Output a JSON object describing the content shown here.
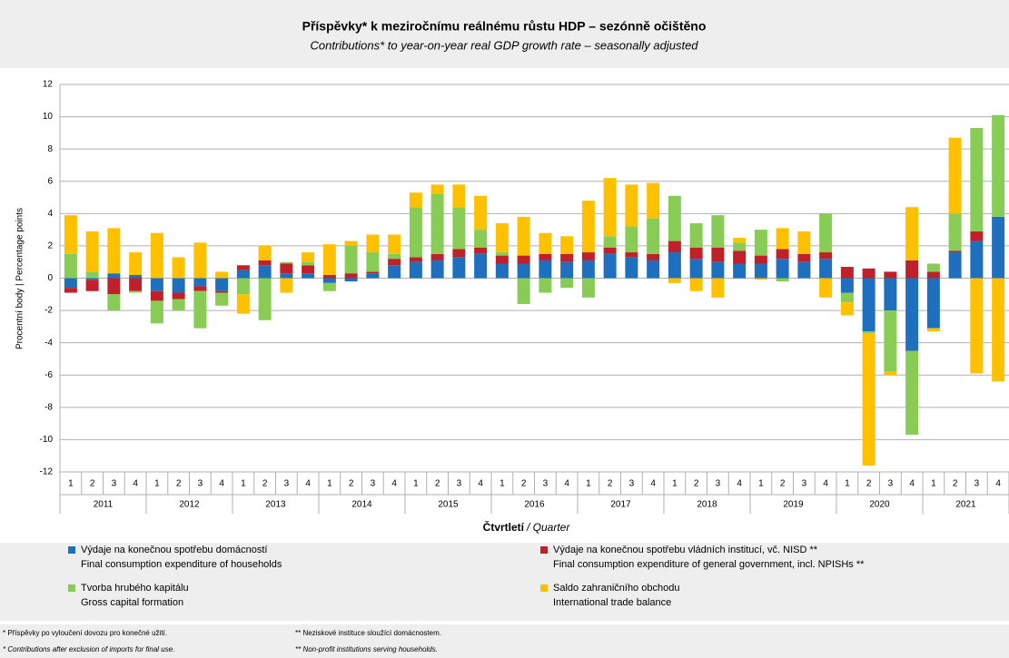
{
  "chart_data": {
    "type": "stacked_bar",
    "title": "Příspěvky* k meziročnímu reálnému růstu HDP – sezónně očištěno",
    "subtitle": "Contributions* to year-on-year real GDP growth rate – seasonally adjusted",
    "y_label": "Procentní body | Percentage points",
    "x_label": "Čtvrtletí",
    "x_label_en": "/ Quarter",
    "categories": [
      "1",
      "2",
      "3",
      "4",
      "1",
      "2",
      "3",
      "4",
      "1",
      "2",
      "3",
      "4",
      "1",
      "2",
      "3",
      "4",
      "1",
      "2",
      "3",
      "4",
      "1",
      "2",
      "3",
      "4",
      "1",
      "2",
      "3",
      "4",
      "1",
      "2",
      "3",
      "4",
      "1",
      "2",
      "3",
      "4",
      "1",
      "2",
      "3",
      "4",
      "1",
      "2",
      "3",
      "4"
    ],
    "years": [
      "2011",
      "2012",
      "2013",
      "2014",
      "2015",
      "2016",
      "2017",
      "2018",
      "2019",
      "2020",
      "2021"
    ],
    "ylim": [
      -12,
      12
    ],
    "yticks": [
      -12,
      -10,
      -8,
      -6,
      -4,
      -2,
      0,
      2,
      4,
      6,
      8,
      10,
      12
    ],
    "grid": true,
    "series": [
      {
        "name": "Výdaje na konečnou spotřebu domácností",
        "name_en": "Final consumption expenditure of households",
        "color": "#1f6fbf",
        "values": [
          -0.6,
          -0.1,
          0.3,
          0.2,
          -0.8,
          -0.9,
          -0.5,
          -0.8,
          0.5,
          0.8,
          0.3,
          0.3,
          -0.3,
          -0.2,
          0.3,
          0.8,
          1.0,
          1.1,
          1.3,
          1.5,
          0.9,
          0.9,
          1.1,
          1.0,
          1.1,
          1.5,
          1.3,
          1.1,
          1.6,
          1.2,
          1.0,
          0.9,
          0.9,
          1.2,
          1.0,
          1.2,
          -0.9,
          -3.3,
          -2.0,
          -4.5,
          -3.1,
          1.6,
          2.3,
          3.8
        ]
      },
      {
        "name": "Výdaje na konečnou spotřebu vládních institucí, vč. NISD **",
        "name_en": "Final consumption expenditure of general government, incl. NPISHs **",
        "color": "#c0202a",
        "values": [
          -0.3,
          -0.7,
          -1.0,
          -0.8,
          -0.6,
          -0.4,
          -0.3,
          -0.1,
          0.3,
          0.3,
          0.6,
          0.5,
          0.2,
          0.3,
          0.1,
          0.4,
          0.3,
          0.4,
          0.5,
          0.4,
          0.5,
          0.5,
          0.4,
          0.5,
          0.5,
          0.4,
          0.3,
          0.4,
          0.7,
          0.7,
          0.9,
          0.8,
          0.5,
          0.6,
          0.5,
          0.4,
          0.7,
          0.6,
          0.4,
          1.1,
          0.4,
          0.1,
          0.6,
          0.0
        ]
      },
      {
        "name": "Tvorba hrubého kapitálu",
        "name_en": "Gross capital formation",
        "color": "#88cc55",
        "values": [
          1.5,
          0.4,
          -1.0,
          -0.1,
          -1.4,
          -0.7,
          -2.3,
          -0.8,
          -1.0,
          -2.6,
          0.1,
          0.2,
          -0.5,
          1.7,
          1.2,
          0.3,
          3.1,
          3.7,
          2.6,
          1.1,
          0.2,
          -1.6,
          -0.9,
          -0.6,
          -1.2,
          0.7,
          1.6,
          2.2,
          2.8,
          1.5,
          2.0,
          0.5,
          1.6,
          -0.2,
          0.0,
          2.4,
          -0.6,
          -0.1,
          -3.8,
          -5.2,
          0.5,
          2.3,
          6.4,
          6.3
        ]
      },
      {
        "name": "Saldo zahraničního obchodu",
        "name_en": "International trade balance",
        "color": "#ffc000",
        "values": [
          2.4,
          2.5,
          2.8,
          1.4,
          2.8,
          1.3,
          2.2,
          0.4,
          -1.2,
          0.9,
          -0.9,
          0.6,
          1.9,
          0.3,
          1.1,
          1.2,
          0.9,
          0.6,
          1.4,
          2.1,
          1.8,
          2.4,
          1.3,
          1.1,
          3.2,
          3.6,
          2.6,
          2.2,
          -0.3,
          -0.8,
          -1.2,
          0.3,
          -0.1,
          1.3,
          1.4,
          -1.2,
          -0.8,
          -8.2,
          -0.2,
          3.3,
          -0.2,
          4.7,
          -5.9,
          -6.4
        ]
      }
    ],
    "footnotes": [
      "* Příspěvky po vyloučení dovozu pro konečné užití.",
      "** Neziskové instituce sloužící domácnostem.",
      "* Contributions after exclusion of imports for final use.",
      "** Non-profit institutions serving households."
    ]
  }
}
